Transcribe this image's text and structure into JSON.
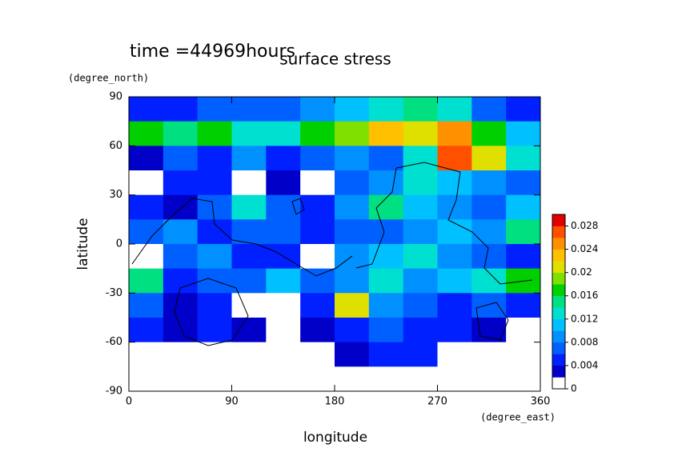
{
  "chart_data": {
    "type": "contour",
    "title": "surface stress",
    "annotation": "time =44969hours",
    "x_label": "longitude",
    "x_unit": "(degree_east)",
    "y_label": "latitude",
    "y_unit": "(degree_north)",
    "xlim": [
      0,
      360
    ],
    "xticks": [
      0,
      90,
      180,
      270,
      360
    ],
    "ylim": [
      -90,
      90
    ],
    "yticks": [
      -90,
      -60,
      -30,
      0,
      30,
      60,
      90
    ],
    "x": [
      15,
      45,
      75,
      105,
      135,
      165,
      195,
      225,
      255,
      285,
      315,
      345
    ],
    "y": [
      82.5,
      67.5,
      52.5,
      37.5,
      22.5,
      7.5,
      -7.5,
      -22.5,
      -37.5,
      -52.5,
      -67.5,
      -82.5
    ],
    "z": [
      [
        0.004,
        0.005,
        0.006,
        0.006,
        0.006,
        0.008,
        0.01,
        0.012,
        0.014,
        0.012,
        0.006,
        0.004
      ],
      [
        0.016,
        0.014,
        0.016,
        0.012,
        0.012,
        0.016,
        0.018,
        0.022,
        0.02,
        0.024,
        0.016,
        0.01
      ],
      [
        0.002,
        0.006,
        0.004,
        0.008,
        0.004,
        0.006,
        0.008,
        0.006,
        0.012,
        0.026,
        0.02,
        0.012
      ],
      [
        0,
        0.004,
        0.004,
        0,
        0.002,
        0,
        0.006,
        0.008,
        0.012,
        0.01,
        0.008,
        0.006
      ],
      [
        0.004,
        0.002,
        0.006,
        0.012,
        0.006,
        0.004,
        0.008,
        0.014,
        0.01,
        0.008,
        0.006,
        0.01
      ],
      [
        0.006,
        0.008,
        0.004,
        0.006,
        0.006,
        0.004,
        0.006,
        0.006,
        0.008,
        0.01,
        0.008,
        0.014
      ],
      [
        0,
        0.006,
        0.008,
        0.004,
        0.004,
        0,
        0.008,
        0.01,
        0.012,
        0.008,
        0.006,
        0.004
      ],
      [
        0.014,
        0.004,
        0.006,
        0.006,
        0.01,
        0.006,
        0.008,
        0.012,
        0.008,
        0.01,
        0.012,
        0.016
      ],
      [
        0.006,
        0.002,
        0.004,
        0,
        0,
        0.004,
        0.02,
        0.008,
        0.006,
        0.004,
        0.006,
        0.004
      ],
      [
        0.004,
        0.002,
        0.004,
        0.002,
        0,
        0.002,
        0.004,
        0.006,
        0.004,
        0.004,
        0.002,
        0
      ],
      [
        0,
        0,
        0,
        0,
        0,
        0,
        0.002,
        0.004,
        0.004,
        0,
        0,
        0
      ],
      [
        0,
        0,
        0,
        0,
        0,
        0,
        0,
        0,
        0,
        0,
        0,
        0
      ]
    ],
    "colorbar": {
      "lim": [
        0,
        0.03
      ],
      "ticks": [
        0,
        0.004,
        0.008,
        0.012,
        0.016,
        0.02,
        0.024,
        0.028
      ],
      "colors": [
        "#ffffff",
        "#0000c8",
        "#0020ff",
        "#0060ff",
        "#0090ff",
        "#00c0ff",
        "#00e0d0",
        "#00e080",
        "#00d000",
        "#80e000",
        "#e0e000",
        "#ffc000",
        "#ff9000",
        "#ff5000",
        "#e00000"
      ]
    }
  }
}
